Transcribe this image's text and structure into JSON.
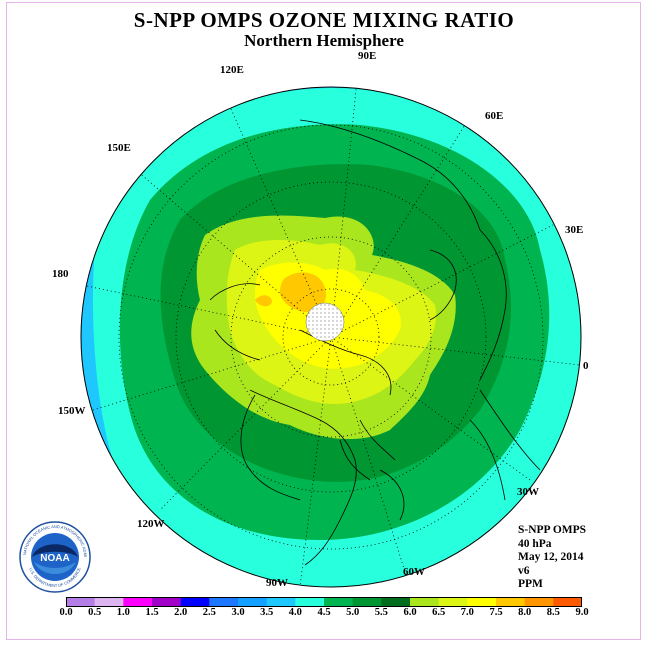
{
  "title": "S-NPP OMPS OZONE MIXING RATIO",
  "subtitle": "Northern Hemisphere",
  "longitude_labels": {
    "e90": "90E",
    "e60": "60E",
    "e30": "30E",
    "zero": "0",
    "w30": "30W",
    "w60": "60W",
    "w90": "90W",
    "w120": "120W",
    "w150": "150W",
    "lon180": "180",
    "e150": "150E",
    "e120": "120E"
  },
  "info": {
    "instrument": "S-NPP OMPS",
    "level": "40 hPa",
    "date": "May 12, 2014",
    "version": "v6",
    "units": "PPM"
  },
  "colorbar": {
    "ticks": [
      "0.0",
      "0.5",
      "1.0",
      "1.5",
      "2.0",
      "2.5",
      "3.0",
      "3.5",
      "4.0",
      "4.5",
      "5.0",
      "5.5",
      "6.0",
      "6.5",
      "7.0",
      "7.5",
      "8.0",
      "8.5",
      "9.0"
    ],
    "colors": [
      "#b47ee6",
      "#dcb4f0",
      "#ff00ff",
      "#a000c8",
      "#0000ff",
      "#1e78ff",
      "#14a0ff",
      "#1ec8ff",
      "#28ffdc",
      "#00b450",
      "#009632",
      "#006e1e",
      "#aae61e",
      "#dcf514",
      "#ffff00",
      "#ffc800",
      "#ff9600",
      "#ff5a00",
      "#ff0000",
      "#8c5028"
    ]
  },
  "logo": {
    "text": "NOAA",
    "ring_text": "NATIONAL OCEANIC AND ATMOSPHERIC ADMINISTRATION",
    "ring_text_bottom": "U.S. DEPARTMENT OF COMMERCE"
  },
  "map": {
    "projection": "north-polar-stereographic",
    "field_colors": {
      "outer": "#1ec8ff",
      "cyan": "#28ffdc",
      "green": "#00b450",
      "darkgreen": "#009632",
      "lime": "#aae61e",
      "yellowgreen": "#dcf514",
      "yellow": "#ffff00",
      "orange": "#ffc800",
      "pole_missing": "#ffffff"
    }
  }
}
